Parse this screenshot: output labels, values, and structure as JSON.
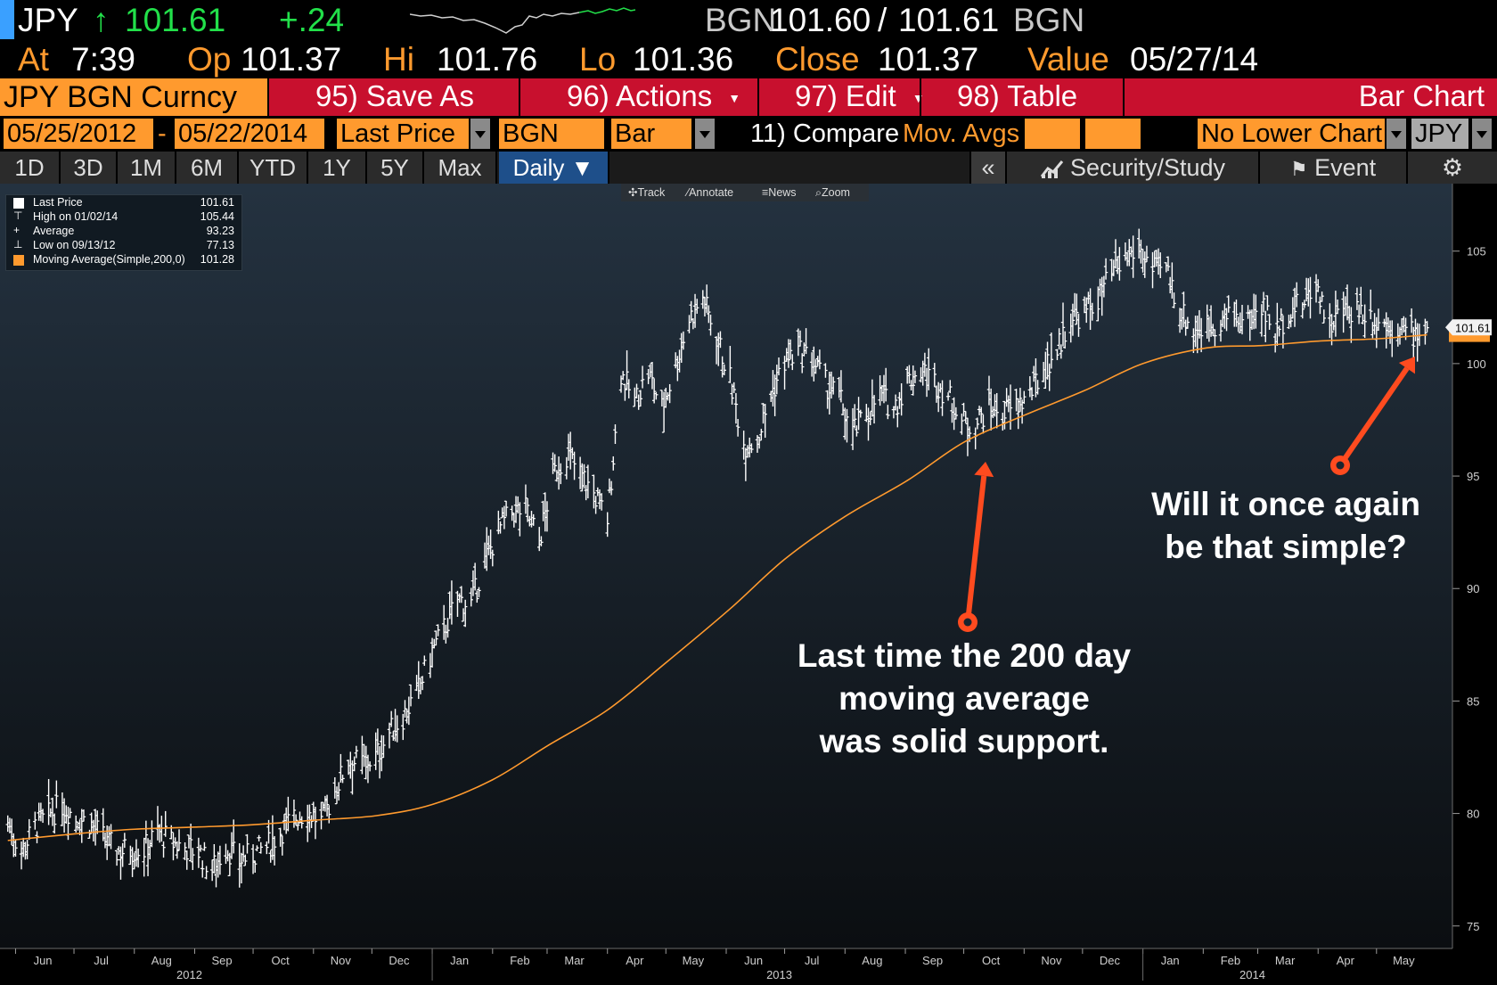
{
  "header": {
    "ticker": "JPY",
    "arrow": "↑",
    "last": "101.61",
    "change": "+.24",
    "bid_source": "BGN",
    "bid": "101.60",
    "slash": "/",
    "ask": "101.61",
    "ask_source": "BGN"
  },
  "quote_row": {
    "at_label": "At",
    "at_value": "7:39",
    "op_label": "Op",
    "op_value": "101.37",
    "hi_label": "Hi",
    "hi_value": "101.76",
    "lo_label": "Lo",
    "lo_value": "101.36",
    "close_label": "Close",
    "close_value": "101.37",
    "value_label": "Value",
    "value_value": "05/27/14"
  },
  "menu": {
    "security": "JPY BGN Curncy",
    "items": [
      "95) Save As",
      "96) Actions",
      "97) Edit",
      "98) Table"
    ],
    "chart_kind": "Bar Chart"
  },
  "settings": {
    "start_date": "05/25/2012",
    "dash": "-",
    "end_date": "05/22/2014",
    "field": "Last Price",
    "source": "BGN",
    "style": "Bar",
    "compare": "11) Compare",
    "mov_avgs": "Mov. Avgs",
    "lower_chart": "No Lower Chart",
    "currency": "JPY"
  },
  "tabs": [
    "1D",
    "3D",
    "1M",
    "6M",
    "YTD",
    "1Y",
    "5Y",
    "Max",
    "Daily ▼"
  ],
  "right_tools": {
    "collapse": "«",
    "security_study": "Security/Study",
    "event": "Event",
    "settings_icon": "gear-icon"
  },
  "chart_tools": [
    "Track",
    "Annotate",
    "News",
    "Zoom"
  ],
  "legend": [
    {
      "label": "Last Price",
      "value": "101.61"
    },
    {
      "label": "High on 01/02/14",
      "value": "105.44"
    },
    {
      "label": "Average",
      "value": "93.23"
    },
    {
      "label": "Low on 09/13/12",
      "value": "77.13"
    },
    {
      "label": "Moving Average(Simple,200,0)",
      "value": "101.28"
    }
  ],
  "annotations": {
    "left": [
      "Last time the 200 day",
      "moving average",
      "was solid support."
    ],
    "right": [
      "Will it once again",
      "be that simple?"
    ]
  },
  "chart_data": {
    "type": "bar",
    "x_months": [
      "Jun",
      "Jul",
      "Aug",
      "Sep",
      "Oct",
      "Nov",
      "Dec",
      "Jan",
      "Feb",
      "Mar",
      "Apr",
      "May",
      "Jun",
      "Jul",
      "Aug",
      "Sep",
      "Oct",
      "Nov",
      "Dec",
      "Jan",
      "Feb",
      "Mar",
      "Apr",
      "May"
    ],
    "x_years": [
      "2012",
      "2013",
      "2014"
    ],
    "y_ticks": [
      75,
      80,
      85,
      90,
      95,
      100,
      105
    ],
    "ylim": [
      74,
      108
    ],
    "last_price_label": "101.61",
    "colors": {
      "price": "#ffffff",
      "moving_average": "#ff9a2e",
      "annotation_arrow": "#ff4b1f",
      "background_top": "#243240",
      "background_bottom": "#0b0e11"
    },
    "price_path": [
      [
        "2012-05-28",
        79.6
      ],
      [
        "2012-06-04",
        78.3
      ],
      [
        "2012-06-11",
        79.4
      ],
      [
        "2012-06-18",
        79.9
      ],
      [
        "2012-06-25",
        80.4
      ],
      [
        "2012-07-02",
        79.8
      ],
      [
        "2012-07-09",
        79.6
      ],
      [
        "2012-07-16",
        78.9
      ],
      [
        "2012-07-23",
        78.3
      ],
      [
        "2012-07-30",
        78.4
      ],
      [
        "2012-08-06",
        78.4
      ],
      [
        "2012-08-13",
        79.2
      ],
      [
        "2012-08-20",
        78.7
      ],
      [
        "2012-08-27",
        78.5
      ],
      [
        "2012-09-03",
        78.3
      ],
      [
        "2012-09-10",
        77.5
      ],
      [
        "2012-09-17",
        78.5
      ],
      [
        "2012-09-24",
        77.9
      ],
      [
        "2012-10-01",
        78.2
      ],
      [
        "2012-10-08",
        78.5
      ],
      [
        "2012-10-15",
        79.2
      ],
      [
        "2012-10-22",
        79.8
      ],
      [
        "2012-10-29",
        80.1
      ],
      [
        "2012-11-05",
        79.6
      ],
      [
        "2012-11-12",
        81.0
      ],
      [
        "2012-11-19",
        82.4
      ],
      [
        "2012-11-26",
        82.2
      ],
      [
        "2012-12-03",
        82.5
      ],
      [
        "2012-12-10",
        83.6
      ],
      [
        "2012-12-17",
        84.3
      ],
      [
        "2012-12-24",
        85.3
      ],
      [
        "2013-01-01",
        87.2
      ],
      [
        "2013-01-07",
        88.2
      ],
      [
        "2013-01-14",
        89.5
      ],
      [
        "2013-01-21",
        89.3
      ],
      [
        "2013-01-28",
        91.2
      ],
      [
        "2013-02-04",
        92.6
      ],
      [
        "2013-02-11",
        93.4
      ],
      [
        "2013-02-18",
        93.5
      ],
      [
        "2013-02-25",
        92.1
      ],
      [
        "2013-03-04",
        95.0
      ],
      [
        "2013-03-11",
        96.0
      ],
      [
        "2013-03-18",
        95.1
      ],
      [
        "2013-03-25",
        94.2
      ],
      [
        "2013-04-01",
        93.1
      ],
      [
        "2013-04-08",
        99.6
      ],
      [
        "2013-04-15",
        98.3
      ],
      [
        "2013-04-22",
        99.6
      ],
      [
        "2013-04-29",
        98.0
      ],
      [
        "2013-05-06",
        99.9
      ],
      [
        "2013-05-13",
        102.0
      ],
      [
        "2013-05-20",
        102.9
      ],
      [
        "2013-05-27",
        101.2
      ],
      [
        "2013-06-03",
        99.3
      ],
      [
        "2013-06-10",
        96.4
      ],
      [
        "2013-06-17",
        96.6
      ],
      [
        "2013-06-24",
        98.6
      ],
      [
        "2013-07-01",
        100.1
      ],
      [
        "2013-07-08",
        100.5
      ],
      [
        "2013-07-15",
        100.2
      ],
      [
        "2013-07-22",
        99.1
      ],
      [
        "2013-07-29",
        98.5
      ],
      [
        "2013-08-05",
        96.9
      ],
      [
        "2013-08-12",
        97.8
      ],
      [
        "2013-08-19",
        98.6
      ],
      [
        "2013-08-26",
        98.0
      ],
      [
        "2013-09-02",
        99.2
      ],
      [
        "2013-09-09",
        99.7
      ],
      [
        "2013-09-16",
        99.2
      ],
      [
        "2013-09-23",
        98.6
      ],
      [
        "2013-09-30",
        97.4
      ],
      [
        "2013-10-07",
        97.3
      ],
      [
        "2013-10-14",
        98.1
      ],
      [
        "2013-10-21",
        97.8
      ],
      [
        "2013-10-28",
        98.1
      ],
      [
        "2013-11-04",
        98.6
      ],
      [
        "2013-11-11",
        99.8
      ],
      [
        "2013-11-18",
        100.6
      ],
      [
        "2013-11-25",
        102.1
      ],
      [
        "2013-12-02",
        102.2
      ],
      [
        "2013-12-09",
        102.9
      ],
      [
        "2013-12-16",
        103.9
      ],
      [
        "2013-12-23",
        104.6
      ],
      [
        "2013-12-30",
        105.2
      ],
      [
        "2014-01-06",
        104.1
      ],
      [
        "2014-01-13",
        104.2
      ],
      [
        "2014-01-20",
        102.4
      ],
      [
        "2014-01-27",
        101.5
      ],
      [
        "2014-02-03",
        101.7
      ],
      [
        "2014-02-10",
        101.9
      ],
      [
        "2014-02-17",
        102.1
      ],
      [
        "2014-02-24",
        101.8
      ],
      [
        "2014-03-03",
        102.7
      ],
      [
        "2014-03-10",
        101.3
      ],
      [
        "2014-03-17",
        102.4
      ],
      [
        "2014-03-24",
        102.6
      ],
      [
        "2014-03-31",
        103.6
      ],
      [
        "2014-04-07",
        101.7
      ],
      [
        "2014-04-14",
        102.3
      ],
      [
        "2014-04-21",
        102.5
      ],
      [
        "2014-04-28",
        102.1
      ],
      [
        "2014-05-05",
        101.7
      ],
      [
        "2014-05-12",
        101.6
      ],
      [
        "2014-05-19",
        101.3
      ],
      [
        "2014-05-27",
        101.61
      ]
    ],
    "moving_average_path": [
      [
        "2012-05-28",
        78.8
      ],
      [
        "2012-07-02",
        79.1
      ],
      [
        "2012-08-01",
        79.3
      ],
      [
        "2012-09-03",
        79.4
      ],
      [
        "2012-10-01",
        79.5
      ],
      [
        "2012-11-01",
        79.7
      ],
      [
        "2012-12-03",
        79.9
      ],
      [
        "2013-01-01",
        80.4
      ],
      [
        "2013-02-01",
        81.5
      ],
      [
        "2013-03-01",
        83.0
      ],
      [
        "2013-04-01",
        84.6
      ],
      [
        "2013-05-01",
        86.7
      ],
      [
        "2013-06-03",
        89.1
      ],
      [
        "2013-07-01",
        91.3
      ],
      [
        "2013-08-01",
        93.2
      ],
      [
        "2013-09-02",
        94.8
      ],
      [
        "2013-10-01",
        96.5
      ],
      [
        "2013-11-01",
        97.7
      ],
      [
        "2013-12-02",
        98.8
      ],
      [
        "2014-01-01",
        100.0
      ],
      [
        "2014-02-03",
        100.7
      ],
      [
        "2014-03-03",
        100.8
      ],
      [
        "2014-04-01",
        101.0
      ],
      [
        "2014-05-01",
        101.1
      ],
      [
        "2014-05-27",
        101.28
      ]
    ]
  }
}
